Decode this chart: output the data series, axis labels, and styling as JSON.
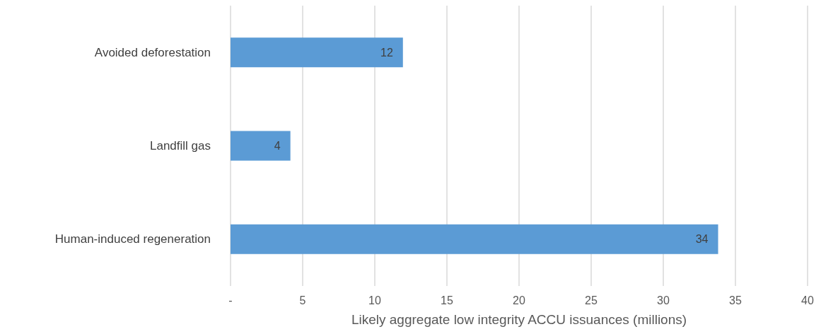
{
  "chart_data": {
    "type": "bar",
    "orientation": "horizontal",
    "xlabel": "Likely aggregate low integrity ACCU issuances (millions)",
    "categories": [
      "Avoided deforestation",
      "Landfill gas",
      "Human-induced regeneration"
    ],
    "values": [
      11.95,
      4.15,
      33.8
    ],
    "value_labels": [
      "12",
      "4",
      "34"
    ],
    "color": "#5b9bd5",
    "xlim": [
      0,
      40
    ],
    "xticks": [
      {
        "value": 0,
        "label": "-"
      },
      5,
      10,
      15,
      20,
      25,
      30,
      35,
      40
    ],
    "grid": "x"
  }
}
